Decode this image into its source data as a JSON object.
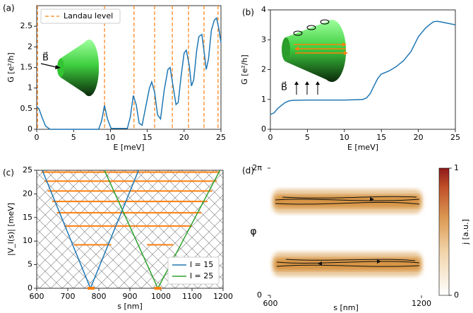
{
  "chart_data": [
    {
      "type": "line",
      "label": "(a)",
      "xlabel": "E [meV]",
      "ylabel": "G [e²/h]",
      "annotation": "B⃗",
      "color": "#1f77b4",
      "x": [
        0,
        0.3,
        0.7,
        1.2,
        1.8,
        8.4,
        8.8,
        9.2,
        9.6,
        10.1,
        12.3,
        12.7,
        13.1,
        13.5,
        13.9,
        14.3,
        14.8,
        15.3,
        15.6,
        16.0,
        16.4,
        16.8,
        17.3,
        17.8,
        18.1,
        18.5,
        18.9,
        19.2,
        19.6,
        20.0,
        20.3,
        20.7,
        21.0,
        21.3,
        21.7,
        22.0,
        22.4,
        22.7,
        23.0,
        23.3,
        23.7,
        24.1,
        24.4,
        24.7,
        25
      ],
      "values": [
        0.55,
        0.5,
        0.3,
        0.08,
        0,
        0,
        0.2,
        0.58,
        0.25,
        0.02,
        0.02,
        0.3,
        0.82,
        0.6,
        0.15,
        0.1,
        0.55,
        1.0,
        1.15,
        0.9,
        0.35,
        0.25,
        0.95,
        1.45,
        1.5,
        1.05,
        0.6,
        0.65,
        1.3,
        1.85,
        1.92,
        1.55,
        1.05,
        1.2,
        1.9,
        2.25,
        2.3,
        1.9,
        1.45,
        1.7,
        2.4,
        2.65,
        2.7,
        2.45,
        2.1
      ],
      "landau_levels": {
        "name": "Landau level",
        "color": "#ff7f0e",
        "values": [
          0.1,
          9.2,
          13.2,
          16.0,
          18.4,
          20.6,
          22.7,
          24.6
        ]
      },
      "legend": "upper left",
      "xlim": [
        0,
        25
      ],
      "xticks": [
        0,
        5,
        10,
        15,
        20,
        25
      ],
      "ylim": [
        0,
        3
      ],
      "yticks": [
        0,
        0.5,
        1,
        1.5,
        2,
        2.5
      ]
    },
    {
      "type": "line",
      "label": "(b)",
      "xlabel": "E [meV]",
      "ylabel": "G [e²/h]",
      "annotation": "B⃗",
      "color": "#1f77b4",
      "x": [
        0,
        0.5,
        1,
        1.5,
        2,
        2.5,
        3,
        5,
        10,
        12.5,
        13,
        13.5,
        14,
        14.5,
        15,
        16,
        17,
        18,
        19,
        20,
        21,
        22,
        22.5,
        23,
        24,
        25
      ],
      "values": [
        0.5,
        0.55,
        0.7,
        0.8,
        0.9,
        0.95,
        0.97,
        0.98,
        0.98,
        1.0,
        1.05,
        1.2,
        1.45,
        1.7,
        1.85,
        1.95,
        2.1,
        2.3,
        2.6,
        3.1,
        3.4,
        3.6,
        3.62,
        3.6,
        3.55,
        3.5
      ],
      "xlim": [
        0,
        25
      ],
      "xticks": [
        0,
        5,
        10,
        15,
        20,
        25
      ],
      "ylim": [
        0,
        4
      ],
      "yticks": [
        0,
        1,
        2,
        3,
        4
      ]
    },
    {
      "type": "line",
      "label": "(c)",
      "xlabel": "s [nm]",
      "ylabel": "|V_l(s)| [meV]",
      "series": [
        {
          "name": "l = 15",
          "color": "#1f77b4",
          "x": [
            618,
            773,
            928
          ],
          "values": [
            25,
            0,
            25
          ]
        },
        {
          "name": "l = 25",
          "color": "#2ca02c",
          "x": [
            818,
            990,
            1190
          ],
          "values": [
            25,
            0,
            25
          ]
        }
      ],
      "levels": {
        "color": "#ff7f0e",
        "values": [
          9.2,
          13.2,
          16.0,
          18.4,
          20.6,
          22.7,
          24.6
        ],
        "x_ranges": [
          [
            [
              720,
              840
            ],
            [
              955,
              1040
            ]
          ],
          [
            [
              688,
              1100
            ]
          ],
          [
            [
              665,
              1130
            ]
          ],
          [
            [
              650,
              1150
            ]
          ],
          [
            [
              635,
              1165
            ]
          ],
          [
            [
              625,
              1180
            ]
          ],
          [
            [
              615,
              1190
            ]
          ]
        ]
      },
      "markers": {
        "color": "#ff7f0e",
        "x": [
          775,
          990
        ],
        "values": [
          0,
          0
        ]
      },
      "legend": "lower right",
      "xlim": [
        600,
        1200
      ],
      "xticks": [
        600,
        700,
        800,
        900,
        1000,
        1100,
        1200
      ],
      "ylim": [
        0,
        25
      ],
      "yticks": [
        0,
        5,
        10,
        15,
        20,
        25
      ]
    },
    {
      "type": "heatmap",
      "label": "(d)",
      "xlabel": "s [nm]",
      "ylabel": "φ",
      "xlim": [
        600,
        1200
      ],
      "xticks": [
        600,
        1200
      ],
      "ylim": [
        0,
        6.283
      ],
      "yticks": [
        0,
        {
          "value": 6.283,
          "label": "2π"
        }
      ],
      "colorbar": {
        "label": "j [a.u.]",
        "lim": [
          0,
          1
        ],
        "ticks": [
          0,
          1
        ]
      }
    }
  ]
}
